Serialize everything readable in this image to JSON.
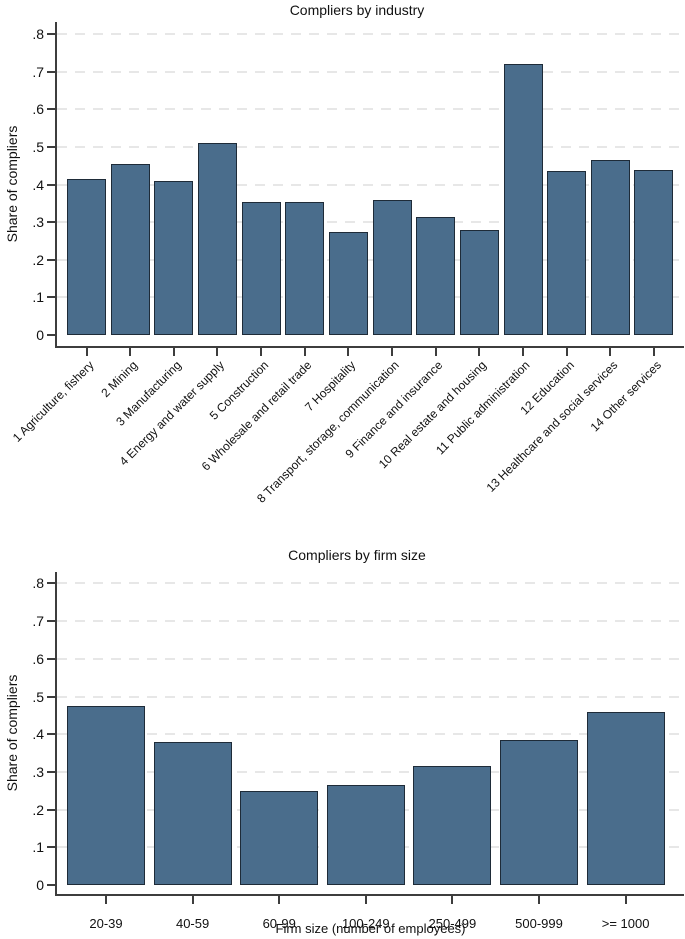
{
  "figure": {
    "background": "#ffffff"
  },
  "colors": {
    "bar_fill": "#4a6d8c",
    "bar_border": "#1e2b38",
    "axis": "#3d3d3d",
    "grid": "#e7e7e7",
    "text": "#111111"
  },
  "chart_data": [
    {
      "type": "bar",
      "title": "Compliers by industry",
      "ylabel": "Share of compliers",
      "xlabel": "",
      "ylim": [
        0,
        0.8
      ],
      "yticks": [
        0,
        0.1,
        0.2,
        0.3,
        0.4,
        0.5,
        0.6,
        0.7,
        0.8
      ],
      "ytick_labels": [
        "0",
        ".1",
        ".2",
        ".3",
        ".4",
        ".5",
        ".6",
        ".7",
        ".8"
      ],
      "grid": "horizontal-dashed",
      "legend": "none",
      "x_label_rotation": -45,
      "categories": [
        "1 Agriculture, fishery",
        "2 Mining",
        "3 Manufacturing",
        "4 Energy and water supply",
        "5 Construction",
        "6 Wholesale and retail trade",
        "7 Hospitality",
        "8 Transport, storage, communication",
        "9 Finance and insurance",
        "10 Real estate and housing",
        "11 Public administration",
        "12 Education",
        "13 Healthcare and social services",
        "14 Other services"
      ],
      "values": [
        0.415,
        0.455,
        0.41,
        0.51,
        0.355,
        0.355,
        0.275,
        0.36,
        0.315,
        0.28,
        0.72,
        0.435,
        0.465,
        0.44
      ]
    },
    {
      "type": "bar",
      "title": "Compliers by firm size",
      "ylabel": "Share of compliers",
      "xlabel": "Firm size (number of employees)",
      "ylim": [
        0,
        0.8
      ],
      "yticks": [
        0,
        0.1,
        0.2,
        0.3,
        0.4,
        0.5,
        0.6,
        0.7,
        0.8
      ],
      "ytick_labels": [
        "0",
        ".1",
        ".2",
        ".3",
        ".4",
        ".5",
        ".6",
        ".7",
        ".8"
      ],
      "grid": "horizontal-dashed",
      "legend": "none",
      "x_label_rotation": 0,
      "categories": [
        "20-39",
        "40-59",
        "60-99",
        "100-249",
        "250-499",
        "500-999",
        ">= 1000"
      ],
      "values": [
        0.475,
        0.38,
        0.25,
        0.265,
        0.315,
        0.385,
        0.46
      ]
    }
  ]
}
